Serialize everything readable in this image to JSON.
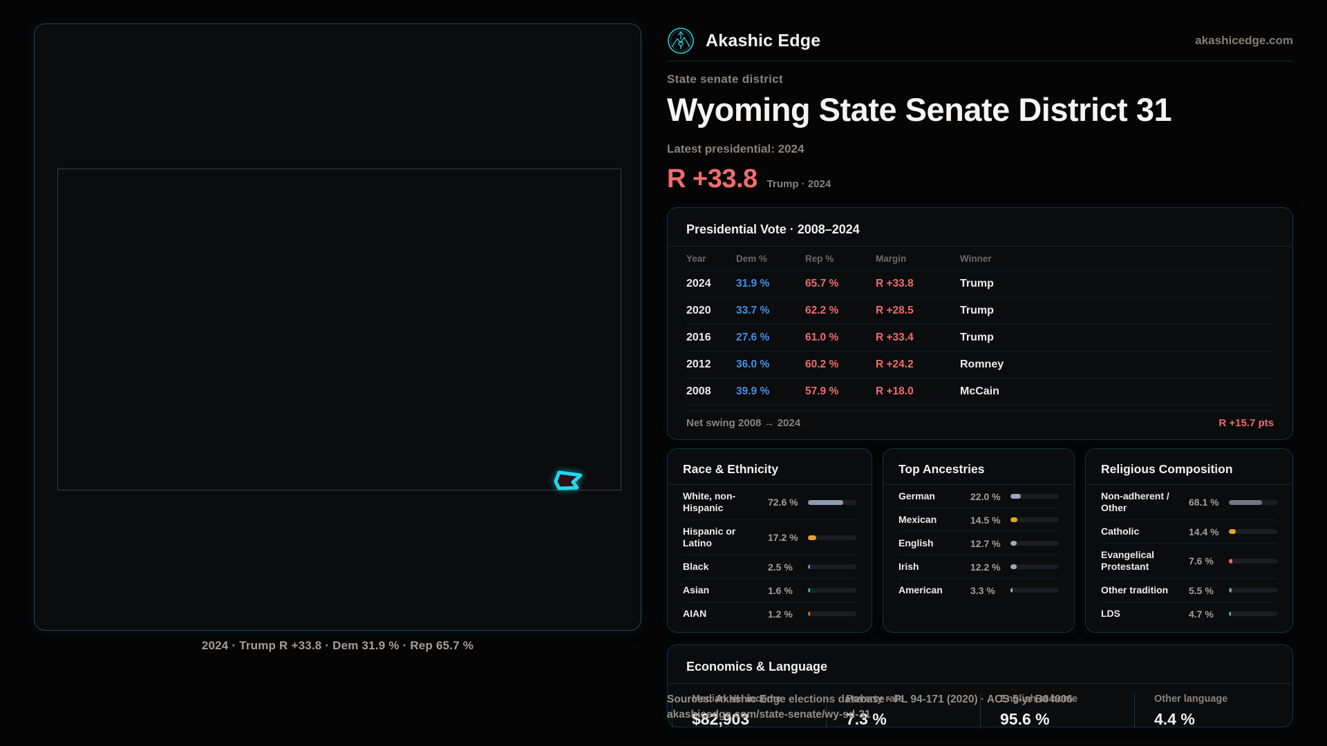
{
  "brand": {
    "name": "Akashic Edge",
    "site": "akashicedge.com",
    "accent_color": "#35c9de"
  },
  "page": {
    "eyebrow": "State senate district",
    "title": "Wyoming State Senate District 31",
    "latest_label": "Latest presidential: 2024",
    "headline_margin": "R +33.8",
    "headline_context": "Trump · 2024",
    "margin_color": "#ee6d6d"
  },
  "map": {
    "caption": "2024 · Trump R +33.8 · Dem 31.9 % · Rep 65.7 %",
    "district_outline_color": "#25d4ee"
  },
  "vote_table": {
    "title": "Presidential Vote · 2008–2024",
    "columns": [
      "Year",
      "Dem %",
      "Rep %",
      "Margin",
      "Winner"
    ],
    "rows": [
      {
        "year": "2024",
        "dem": "31.9 %",
        "rep": "65.7 %",
        "margin": "R +33.8",
        "winner": "Trump"
      },
      {
        "year": "2020",
        "dem": "33.7 %",
        "rep": "62.2 %",
        "margin": "R +28.5",
        "winner": "Trump"
      },
      {
        "year": "2016",
        "dem": "27.6 %",
        "rep": "61.0 %",
        "margin": "R +33.4",
        "winner": "Trump"
      },
      {
        "year": "2012",
        "dem": "36.0 %",
        "rep": "60.2 %",
        "margin": "R +24.2",
        "winner": "Romney"
      },
      {
        "year": "2008",
        "dem": "39.9 %",
        "rep": "57.9 %",
        "margin": "R +18.0",
        "winner": "McCain"
      }
    ],
    "net_swing_label": "Net swing 2008 → 2024",
    "net_swing_value": "R +15.7 pts",
    "dem_color": "#4090e6",
    "rep_color": "#ee6d6d"
  },
  "demographic_panels": [
    {
      "id": "race",
      "title": "Race & Ethnicity",
      "items": [
        {
          "label": "White, non-Hispanic",
          "value": "72.6 %",
          "pct": 72.6,
          "color": "#8c9db5"
        },
        {
          "label": "Hispanic or Latino",
          "value": "17.2 %",
          "pct": 17.2,
          "color": "#e2a42c"
        },
        {
          "label": "Black",
          "value": "2.5 %",
          "pct": 2.5,
          "color": "#8a7ae4"
        },
        {
          "label": "Asian",
          "value": "1.6 %",
          "pct": 1.6,
          "color": "#2bbd92"
        },
        {
          "label": "AIAN",
          "value": "1.2 %",
          "pct": 1.2,
          "color": "#cf7128"
        }
      ]
    },
    {
      "id": "ancestry",
      "title": "Top Ancestries",
      "items": [
        {
          "label": "German",
          "value": "22.0 %",
          "pct": 22.0,
          "color": "#97a8bf"
        },
        {
          "label": "Mexican",
          "value": "14.5 %",
          "pct": 14.5,
          "color": "#e2a42c"
        },
        {
          "label": "English",
          "value": "12.7 %",
          "pct": 12.7,
          "color": "#97a8bf"
        },
        {
          "label": "Irish",
          "value": "12.2 %",
          "pct": 12.2,
          "color": "#97a8bf"
        },
        {
          "label": "American",
          "value": "3.3 %",
          "pct": 3.3,
          "color": "#aab4bf"
        }
      ]
    },
    {
      "id": "religion",
      "title": "Religious Composition",
      "items": [
        {
          "label": "Non-adherent / Other",
          "value": "68.1 %",
          "pct": 68.1,
          "color": "#6f7582"
        },
        {
          "label": "Catholic",
          "value": "14.4 %",
          "pct": 14.4,
          "color": "#e2a42c"
        },
        {
          "label": "Evangelical Protestant",
          "value": "7.6 %",
          "pct": 7.6,
          "color": "#e06c6c"
        },
        {
          "label": "Other tradition",
          "value": "5.5 %",
          "pct": 5.5,
          "color": "#8b949e"
        },
        {
          "label": "LDS",
          "value": "4.7 %",
          "pct": 4.7,
          "color": "#27c79e"
        }
      ]
    }
  ],
  "economics": {
    "title": "Economics & Language",
    "stats": [
      {
        "label": "Median HH income",
        "value": "$82,903"
      },
      {
        "label": "Poverty rate",
        "value": "7.3 %"
      },
      {
        "label": "English at home",
        "value": "95.6 %"
      },
      {
        "label": "Other language",
        "value": "4.4 %"
      }
    ]
  },
  "footer": {
    "line1": "Sources: Akashic Edge elections database · PL 94-171 (2020) · ACS 5-yr B04006",
    "line2": "akashicedge.com/state-senate/wy-sd-31"
  }
}
